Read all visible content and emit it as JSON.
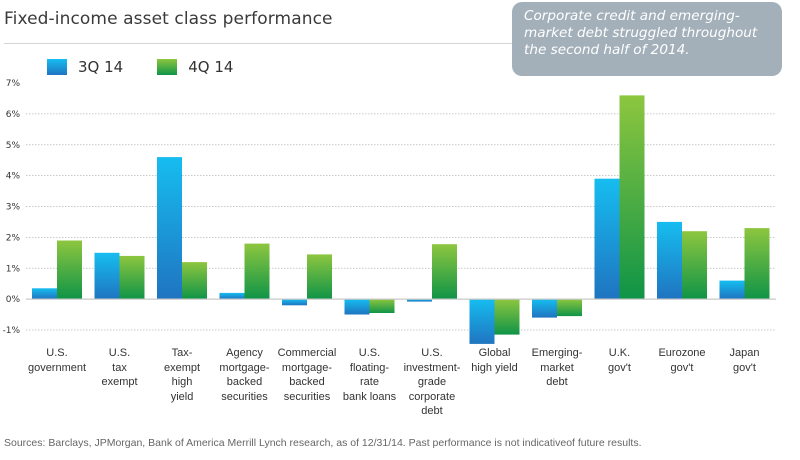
{
  "title": "Fixed-income asset class performance",
  "callout": "Corporate credit and emerging-market debt struggled throughout the second half of 2014.",
  "legend": [
    {
      "label": "3Q 14",
      "series": "3Q 14"
    },
    {
      "label": "4Q 14",
      "series": "4Q 14"
    }
  ],
  "source": "Sources: Barclays, JPMorgan, Bank of America Merrill Lynch research, as of 12/31/14. Past performance is not indicativeof future results.",
  "colors": {
    "q3_top": "#16bdf0",
    "q3_bottom": "#1f74c0",
    "q4_top": "#8dc63f",
    "q4_bottom": "#0f9447",
    "callout_bg": "#a3b0ba",
    "gridline": "#b8b8b8",
    "baseline": "#c8c8c8"
  },
  "chart_data": {
    "type": "bar",
    "title": "Fixed-income asset class performance",
    "xlabel": "",
    "ylabel": "",
    "ylim": [
      -1,
      7
    ],
    "yticks": [
      -1,
      0,
      1,
      2,
      3,
      4,
      5,
      6,
      7
    ],
    "ytick_labels": [
      "-1%",
      "0%",
      "1%",
      "2%",
      "3%",
      "4%",
      "5%",
      "6%",
      "7%"
    ],
    "grid": true,
    "legend_position": "top-left",
    "categories": [
      "U.S.\ngovernment",
      "U.S.\ntax\nexempt",
      "Tax-\nexempt\nhigh\nyield",
      "Agency\nmortgage-\nbacked\nsecurities",
      "Commercial\nmortgage-\nbacked\nsecurities",
      "U.S.\nfloating-\nrate\nbank loans",
      "U.S.\ninvestment-\ngrade\ncorporate\ndebt",
      "Global\nhigh yield",
      "Emerging-\nmarket\ndebt",
      "U.K.\ngov't",
      "Eurozone\ngov't",
      "Japan\ngov't"
    ],
    "series": [
      {
        "name": "3Q 14",
        "values": [
          0.35,
          1.5,
          4.6,
          0.2,
          -0.2,
          -0.5,
          -0.08,
          -1.45,
          -0.6,
          3.9,
          2.5,
          0.6
        ]
      },
      {
        "name": "4Q 14",
        "values": [
          1.9,
          1.4,
          1.2,
          1.8,
          1.45,
          -0.45,
          1.78,
          -1.15,
          -0.55,
          6.6,
          2.2,
          2.3
        ]
      }
    ]
  }
}
